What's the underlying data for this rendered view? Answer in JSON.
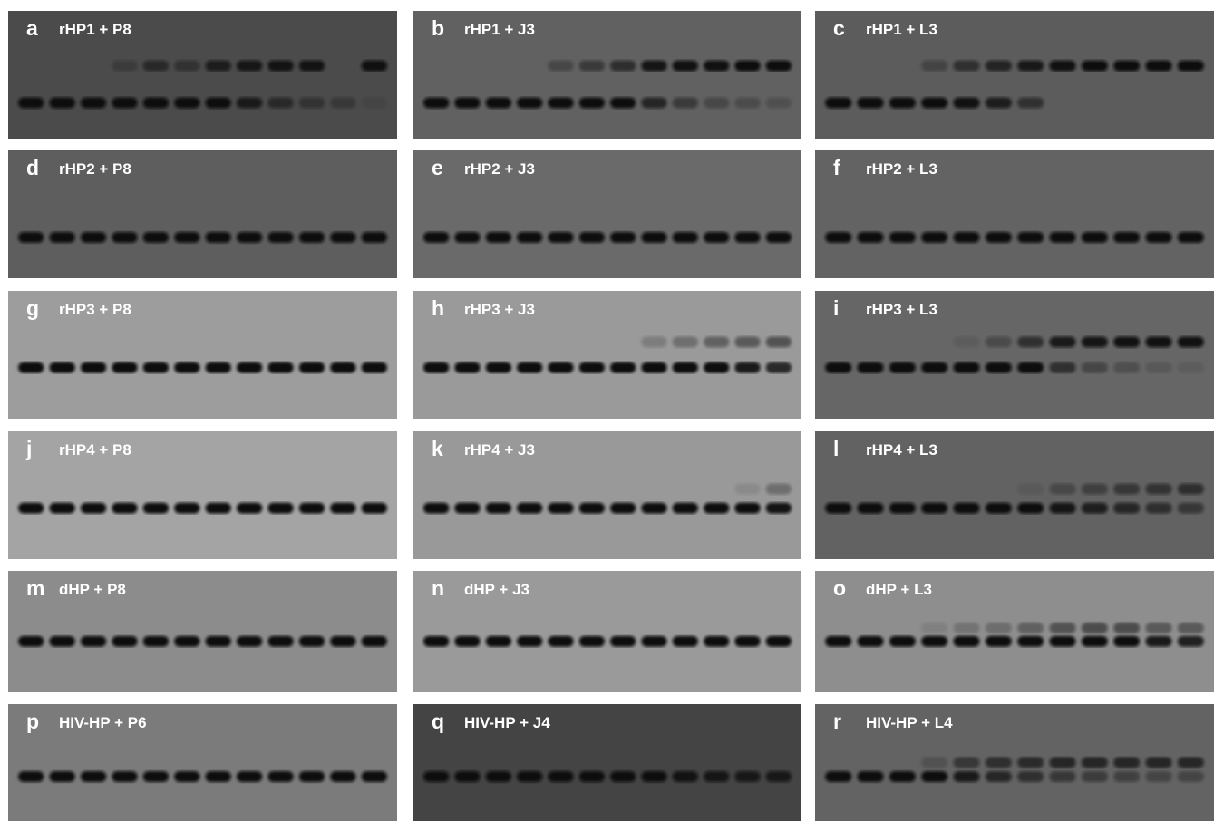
{
  "panels": [
    {
      "letter": "a",
      "title": "rHP1 + P8",
      "bg": "#4b4b4b",
      "free": [
        1,
        1,
        1,
        1,
        1,
        1,
        1,
        0.8,
        0.55,
        0.4,
        0.3,
        0.1
      ],
      "shift": [
        0,
        0,
        0,
        0.25,
        0.55,
        0.4,
        0.75,
        0.85,
        0.9,
        0.9,
        0,
        0.95
      ]
    },
    {
      "letter": "b",
      "title": "rHP1 + J3",
      "bg": "#616161",
      "free": [
        1,
        1,
        1,
        1,
        1,
        1,
        1,
        0.7,
        0.45,
        0.3,
        0.25,
        0.2
      ],
      "shift": [
        0,
        0,
        0,
        0,
        0.3,
        0.45,
        0.6,
        0.9,
        0.95,
        0.95,
        1,
        1
      ]
    },
    {
      "letter": "c",
      "title": "rHP1 + L3",
      "bg": "#5c5c5c",
      "free": [
        1,
        1,
        1,
        1,
        0.95,
        0.8,
        0.55,
        0,
        0,
        0,
        0,
        0
      ],
      "shift": [
        0,
        0,
        0,
        0.3,
        0.55,
        0.7,
        0.85,
        0.95,
        1,
        1,
        1,
        1
      ]
    },
    {
      "letter": "d",
      "title": "rHP2 + P8",
      "bg": "#5e5e5e",
      "free": [
        1,
        1,
        1,
        1,
        1,
        1,
        1,
        1,
        1,
        1,
        1,
        1
      ],
      "shift": [
        0,
        0,
        0,
        0,
        0,
        0,
        0,
        0,
        0,
        0,
        0,
        0
      ]
    },
    {
      "letter": "e",
      "title": "rHP2 + J3",
      "bg": "#6a6a6a",
      "free": [
        1,
        1,
        1,
        1,
        1,
        1,
        1,
        1,
        1,
        1,
        1,
        1
      ],
      "shift": [
        0,
        0,
        0,
        0,
        0,
        0,
        0,
        0,
        0,
        0,
        0,
        0
      ]
    },
    {
      "letter": "f",
      "title": "rHP2 + L3",
      "bg": "#636363",
      "free": [
        1,
        1,
        1,
        1,
        1,
        1,
        1,
        1,
        1,
        1,
        1,
        1
      ],
      "shift": [
        0,
        0,
        0,
        0,
        0,
        0,
        0,
        0,
        0,
        0,
        0,
        0
      ]
    },
    {
      "letter": "g",
      "title": "rHP3 + P8",
      "bg": "#9d9d9d",
      "free": [
        1,
        1,
        1,
        1,
        1,
        1,
        1,
        1,
        1,
        1,
        1,
        1
      ],
      "shift": [
        0,
        0,
        0,
        0,
        0,
        0,
        0,
        0,
        0,
        0,
        0,
        0
      ]
    },
    {
      "letter": "h",
      "title": "rHP3 + J3",
      "bg": "#9a9a9a",
      "free": [
        1,
        1,
        1,
        1,
        1,
        1,
        1,
        1,
        1,
        1,
        0.9,
        0.8
      ],
      "shift": [
        0,
        0,
        0,
        0,
        0,
        0,
        0,
        0.2,
        0.3,
        0.4,
        0.45,
        0.5
      ]
    },
    {
      "letter": "i",
      "title": "rHP3 + L3",
      "bg": "#666666",
      "free": [
        1,
        1,
        1,
        1,
        1,
        1,
        1,
        0.6,
        0.35,
        0.25,
        0.15,
        0.1
      ],
      "shift": [
        0,
        0,
        0,
        0,
        0.1,
        0.3,
        0.6,
        0.85,
        0.9,
        0.95,
        0.95,
        0.95
      ]
    },
    {
      "letter": "j",
      "title": "rHP4 + P8",
      "bg": "#a4a4a4",
      "free": [
        1,
        1,
        1,
        1,
        1,
        1,
        1,
        1,
        1,
        1,
        1,
        1
      ],
      "shift": [
        0,
        0,
        0,
        0,
        0,
        0,
        0,
        0,
        0,
        0,
        0,
        0
      ]
    },
    {
      "letter": "k",
      "title": "rHP4 + J3",
      "bg": "#999999",
      "free": [
        1,
        1,
        1,
        1,
        1,
        1,
        1,
        1,
        1,
        1,
        1,
        0.95
      ],
      "shift": [
        0,
        0,
        0,
        0,
        0,
        0,
        0,
        0,
        0,
        0,
        0.1,
        0.3
      ]
    },
    {
      "letter": "l",
      "title": "rHP4 + L3",
      "bg": "#626262",
      "free": [
        1,
        1,
        1,
        1,
        1,
        1,
        1,
        0.9,
        0.8,
        0.7,
        0.6,
        0.5
      ],
      "shift": [
        0,
        0,
        0,
        0,
        0,
        0,
        0.1,
        0.3,
        0.4,
        0.5,
        0.55,
        0.6
      ]
    },
    {
      "letter": "m",
      "title": "dHP + P8",
      "bg": "#8c8c8c",
      "free": [
        1,
        1,
        1,
        1,
        1,
        1,
        1,
        1,
        1,
        1,
        1,
        1
      ],
      "shift": [
        0,
        0,
        0,
        0,
        0,
        0,
        0,
        0,
        0,
        0,
        0,
        0
      ]
    },
    {
      "letter": "n",
      "title": "dHP + J3",
      "bg": "#9a9a9a",
      "free": [
        1,
        1,
        1,
        1,
        1,
        1,
        1,
        1,
        1,
        1,
        1,
        1
      ],
      "shift": [
        0,
        0,
        0,
        0,
        0,
        0,
        0,
        0,
        0,
        0,
        0,
        0
      ]
    },
    {
      "letter": "o",
      "title": "dHP + L3",
      "bg": "#8e8e8e",
      "free": [
        1,
        1,
        1,
        1,
        1,
        1,
        1,
        1,
        1,
        1,
        0.9,
        0.85
      ],
      "shift": [
        0,
        0,
        0,
        0.1,
        0.2,
        0.25,
        0.35,
        0.45,
        0.5,
        0.5,
        0.4,
        0.4
      ]
    },
    {
      "letter": "p",
      "title": "HIV-HP + P6",
      "bg": "#7b7b7b",
      "free": [
        1,
        1,
        1,
        1,
        1,
        1,
        1,
        1,
        1,
        1,
        1,
        1
      ],
      "shift": [
        0,
        0,
        0,
        0,
        0,
        0,
        0,
        0,
        0,
        0,
        0,
        0
      ]
    },
    {
      "letter": "q",
      "title": "HIV-HP + J4",
      "bg": "#444444",
      "free": [
        1,
        1,
        1,
        1,
        1,
        1,
        1,
        1,
        0.9,
        0.85,
        0.8,
        0.8
      ],
      "shift": [
        0,
        0,
        0,
        0,
        0,
        0,
        0,
        0,
        0,
        0,
        0,
        0
      ]
    },
    {
      "letter": "r",
      "title": "HIV-HP + L4",
      "bg": "#636363",
      "free": [
        1,
        1,
        1,
        1,
        0.85,
        0.7,
        0.6,
        0.5,
        0.45,
        0.4,
        0.35,
        0.35
      ],
      "shift": [
        0,
        0,
        0,
        0.2,
        0.5,
        0.6,
        0.65,
        0.7,
        0.7,
        0.7,
        0.7,
        0.7
      ]
    }
  ]
}
